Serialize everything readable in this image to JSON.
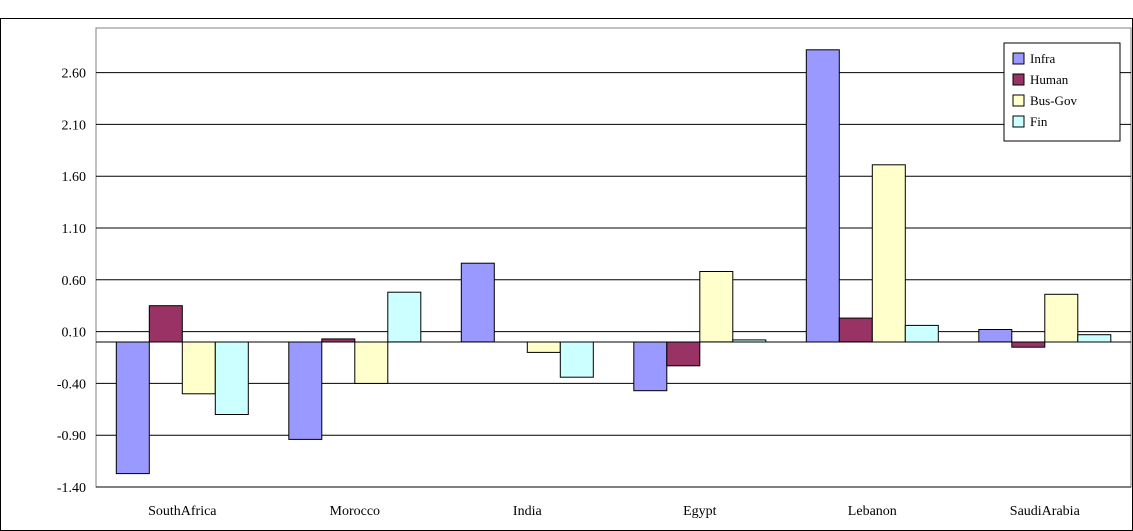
{
  "chart_data": {
    "type": "bar",
    "title": "",
    "xlabel": "",
    "ylabel": "",
    "categories": [
      "SouthAfrica",
      "Morocco",
      "India",
      "Egypt",
      "Lebanon",
      "SaudiArabia"
    ],
    "series": [
      {
        "name": "Infra",
        "color": "#9999ff",
        "values": [
          -1.27,
          -0.94,
          0.76,
          -0.47,
          2.82,
          0.12
        ]
      },
      {
        "name": "Human",
        "color": "#993366",
        "values": [
          0.35,
          0.03,
          0.0,
          -0.23,
          0.23,
          -0.05
        ]
      },
      {
        "name": "Bus-Gov",
        "color": "#ffffcc",
        "values": [
          -0.5,
          -0.4,
          -0.1,
          0.68,
          1.71,
          0.46
        ]
      },
      {
        "name": "Fin",
        "color": "#ccffff",
        "values": [
          -0.7,
          0.48,
          -0.34,
          0.02,
          0.16,
          0.07
        ]
      }
    ],
    "ylim": [
      -1.4,
      3.1
    ],
    "yticks": [
      "2.60",
      "2.10",
      "1.60",
      "1.10",
      "0.60",
      "0.10",
      "-0.40",
      "-0.90",
      "-1.40"
    ],
    "grid": true,
    "legend": "top-right"
  }
}
